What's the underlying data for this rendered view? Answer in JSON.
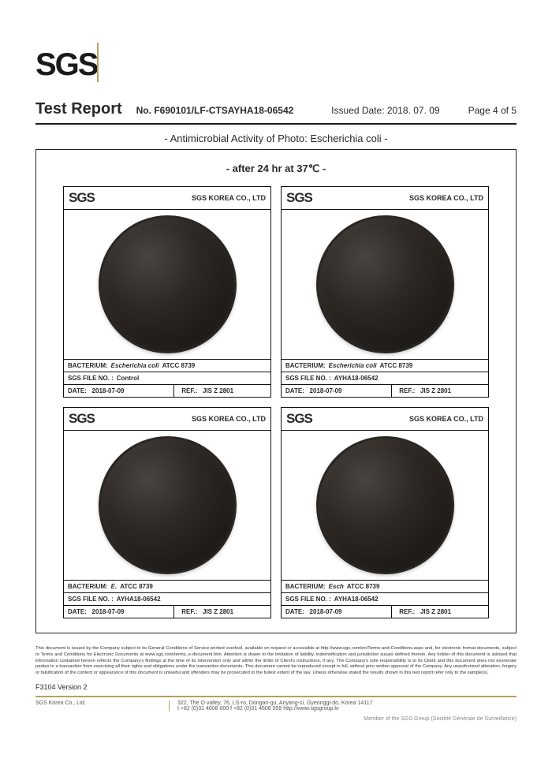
{
  "logo": "SGS",
  "header": {
    "title": "Test Report",
    "no_label": "No.",
    "no": "F690101/LF-CTSAYHA18-06542",
    "date_label": "Issued Date:",
    "date": "2018. 07. 09",
    "page": "Page 4 of 5"
  },
  "subtitle1": "- Antimicrobial Activity of Photo: Escherichia coli -",
  "subtitle2": "- after 24 hr at 37℃ -",
  "card_logo": "SGS",
  "card_company": "SGS KOREA CO., LTD",
  "bact_label": "BACTERIUM:",
  "bact_italic": "Escherichia coli",
  "bact_tail": "ATCC 8739",
  "file_label": "SGS FILE NO. :",
  "date_row_label": "DATE:",
  "date_row_val": "2018-07-09",
  "ref_label": "REF.:",
  "ref_val": "JIS Z 2801",
  "cards": [
    {
      "file": "Control",
      "bact_italic_full": true
    },
    {
      "file": "AYHA18-06542",
      "bact_italic_full": true
    },
    {
      "file": "AYHA18-06542",
      "bact_italic_full": false,
      "bact_italic_text": "E.",
      "bact_tail_partial": "ATCC 8739"
    },
    {
      "file": "AYHA18-06542",
      "bact_italic_full": false,
      "bact_italic_text": "Esch",
      "bact_tail_partial": "ATCC 8739"
    }
  ],
  "colors": {
    "accent": "#b7a05f",
    "text": "#2a2a2a",
    "border": "#111111",
    "dish_dark": "#1b1714",
    "dish_mid": "#2d2824",
    "background": "#ffffff"
  },
  "disclaimer": "This document is issued by the Company subject to its General Conditions of Service printed overleaf, available on request or accessible at http://www.sgs.com/en/Terms-and-Conditions.aspx and, for electronic format documents, subject to Terms and Conditions for Electronic Documents at www.sgs.com/terms_e-document.htm. Attention is drawn to the limitation of liability, indemnification and jurisdiction issues defined therein. Any holder of this document is advised that information contained hereon reflects the Company's findings at the time of its intervention only and within the limits of Client's instructions, if any. The Company's sole responsibility is to its Client and this document does not exonerate parties to a transaction from exercising all their rights and obligations under the transaction documents. This document cannot be reproduced except in full, without prior written approval of the Company. Any unauthorized alteration, forgery or falsification of the content or appearance of this document is unlawful and offenders may be prosecuted to the fullest extent of the law. Unless otherwise stated the results shown in this test report refer only to the sample(s).",
  "version": "F3104 Version 2",
  "footer_left": "SGS Korea Co., Ltd.",
  "footer_right_line1": "322, The O valley, 76, LS-ro, Dongan-gu, Anyang-si, Gyeonggi-do, Korea 14117",
  "footer_right_line2": "t +82 (0)31 4608 000 f +82 (0)31 4608 059  http://www.sgsgroup.kr",
  "member": "Member of the SGS Group (Société Générale de Surveillance)"
}
